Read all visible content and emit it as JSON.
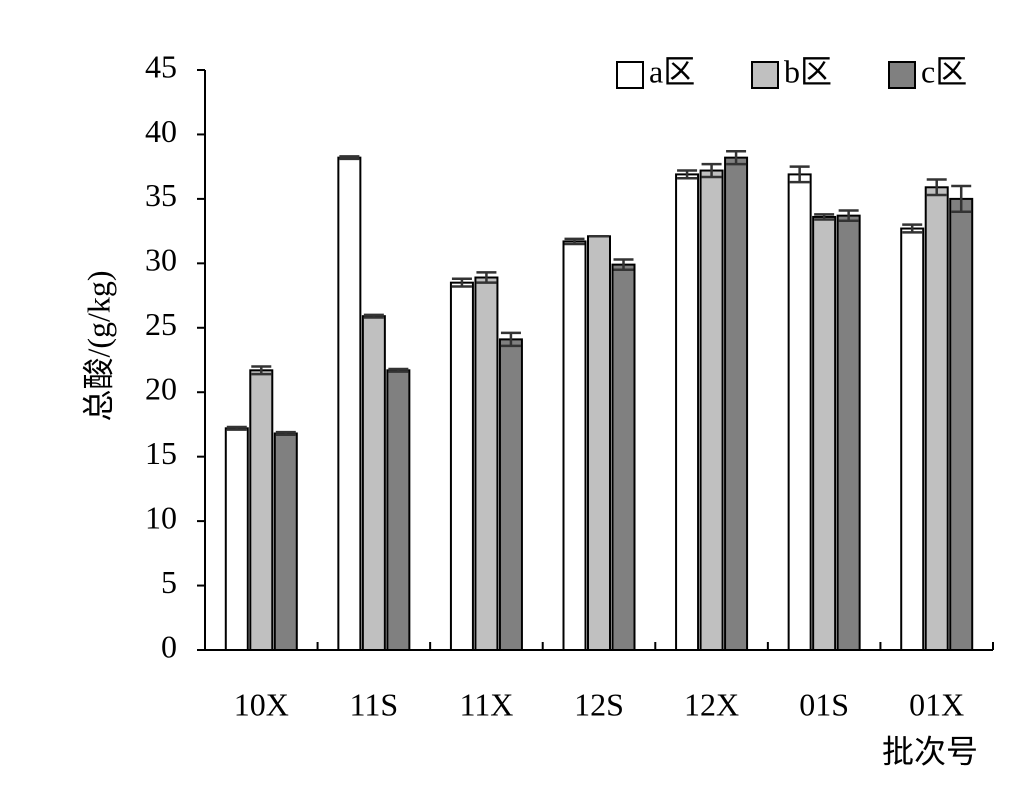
{
  "chart_data": {
    "type": "bar",
    "ylabel": "总酸/(g/kg)",
    "xlabel": "批次号",
    "categories": [
      "10X",
      "11S",
      "11X",
      "12S",
      "12X",
      "01S",
      "01X"
    ],
    "series": [
      {
        "name": "a区",
        "color": "#ffffff",
        "values": [
          17.2,
          38.2,
          28.5,
          31.7,
          36.9,
          36.9,
          32.7
        ],
        "errors": [
          0.1,
          0.1,
          0.3,
          0.2,
          0.3,
          0.6,
          0.3
        ]
      },
      {
        "name": "b区",
        "color": "#c0c0c0",
        "values": [
          21.7,
          25.9,
          28.9,
          32.1,
          37.2,
          33.6,
          35.9
        ],
        "errors": [
          0.3,
          0.1,
          0.4,
          0,
          0.5,
          0.2,
          0.6
        ]
      },
      {
        "name": "c区",
        "color": "#808080",
        "values": [
          16.8,
          21.7,
          24.1,
          29.9,
          38.2,
          33.7,
          35.0
        ],
        "errors": [
          0.1,
          0.1,
          0.5,
          0.4,
          0.5,
          0.4,
          1.0
        ]
      }
    ],
    "ylim": [
      0,
      45
    ],
    "yticks": [
      0,
      5,
      10,
      15,
      20,
      25,
      30,
      35,
      40,
      45
    ],
    "legend": "top-right"
  }
}
